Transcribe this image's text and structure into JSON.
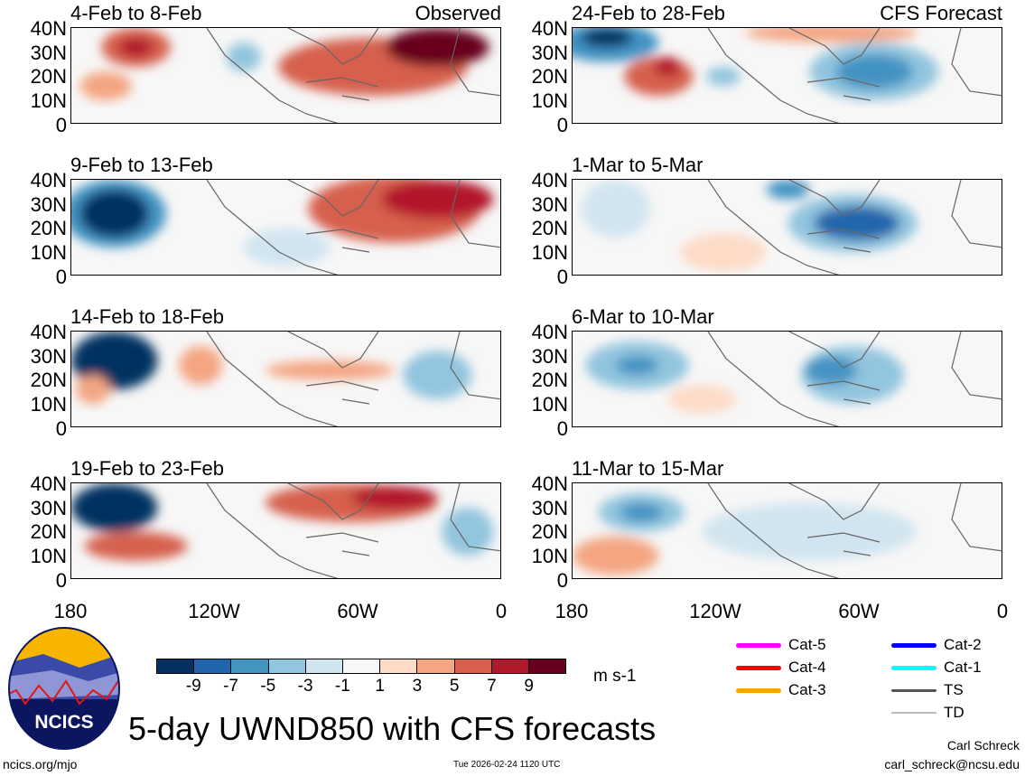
{
  "panels": [
    {
      "title": "4-Feb to 8-Feb",
      "label": "Observed"
    },
    {
      "title": "24-Feb to 28-Feb",
      "label": "CFS Forecast"
    },
    {
      "title": "9-Feb to 13-Feb",
      "label": ""
    },
    {
      "title": "1-Mar to 5-Mar",
      "label": ""
    },
    {
      "title": "14-Feb to 18-Feb",
      "label": ""
    },
    {
      "title": "6-Mar to 10-Mar",
      "label": ""
    },
    {
      "title": "19-Feb to 23-Feb",
      "label": ""
    },
    {
      "title": "11-Mar to 15-Mar",
      "label": ""
    }
  ],
  "y_ticks": [
    "40N",
    "30N",
    "20N",
    "10N",
    "0"
  ],
  "x_ticks": [
    "180",
    "120W",
    "60W",
    "0"
  ],
  "colorbar": {
    "colors": [
      "#053061",
      "#2166ac",
      "#4393c3",
      "#92c5de",
      "#d1e5f0",
      "#f7f7f7",
      "#fddbc7",
      "#f4a582",
      "#d6604d",
      "#b2182b",
      "#67001f"
    ],
    "labels": [
      "-9",
      "-7",
      "-5",
      "-3",
      "-1",
      "1",
      "3",
      "5",
      "7",
      "9"
    ],
    "units": "m s-1"
  },
  "legend": [
    {
      "label": "Cat-5",
      "color": "#ff00ff"
    },
    {
      "label": "Cat-4",
      "color": "#ff0000"
    },
    {
      "label": "Cat-3",
      "color": "#ffa500"
    },
    {
      "label": "Cat-2",
      "color": "#0000ff"
    },
    {
      "label": "Cat-1",
      "color": "#00ffff"
    },
    {
      "label": "TS",
      "color": "#555555"
    },
    {
      "label": "TD",
      "color": "#bbbbbb"
    }
  ],
  "logo_text": "NCICS",
  "title": "5-day UWND850 with CFS forecasts",
  "footer": {
    "url": "ncics.org/mjo",
    "timestamp": "Tue 2026-02-24 1120 UTC",
    "author": "Carl Schreck",
    "email": "carl_schreck@ncsu.edu"
  }
}
